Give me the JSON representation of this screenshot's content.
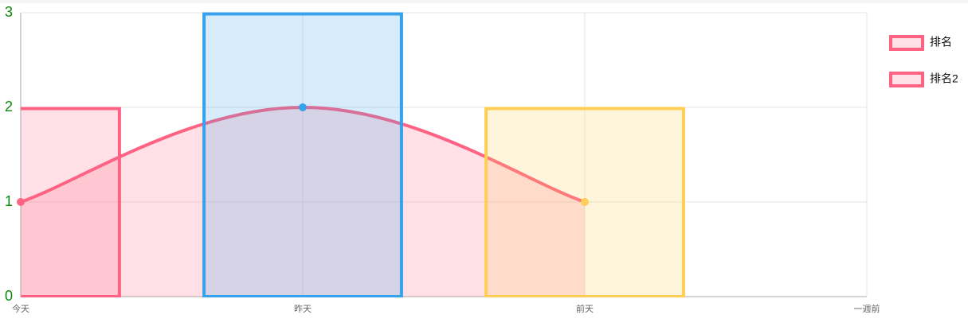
{
  "chart_data": {
    "type": "bar-line",
    "categories": [
      "今天",
      "昨天",
      "前天",
      "一週前"
    ],
    "series": [
      {
        "name": "排名",
        "type": "bar",
        "colors": [
          "#ff6384",
          "#36a2eb",
          "#ffce56",
          null
        ],
        "values": [
          2,
          3,
          2,
          null
        ]
      },
      {
        "name": "排名2",
        "type": "line",
        "color": "#ff6384",
        "point_colors": [
          "#ff6384",
          "#36a2eb",
          "#ffce56",
          null
        ],
        "values": [
          1,
          2,
          1,
          null
        ]
      }
    ],
    "ylim": [
      0,
      3
    ],
    "yticks": [
      0,
      1,
      2,
      3
    ],
    "grid": true,
    "legend": "right"
  }
}
